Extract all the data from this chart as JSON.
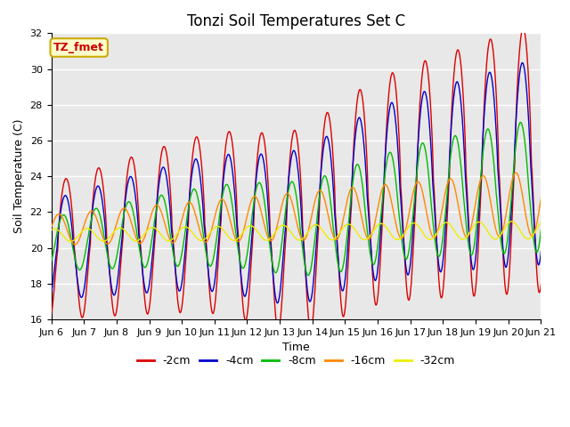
{
  "title": "Tonzi Soil Temperatures Set C",
  "xlabel": "Time",
  "ylabel": "Soil Temperature (C)",
  "ylim": [
    16,
    32
  ],
  "n_days": 15,
  "annotation": "TZ_fmet",
  "annotation_color": "#cc0000",
  "annotation_bg": "#ffffcc",
  "annotation_border": "#ccaa00",
  "series_colors": {
    "-2cm": "#dd0000",
    "-4cm": "#0000cc",
    "-8cm": "#00bb00",
    "-16cm": "#ff8800",
    "-32cm": "#eeee00"
  },
  "series_linewidth": 1.0,
  "bg_color": "#e8e8e8",
  "grid_color": "#ffffff",
  "tick_label_size": 8,
  "title_size": 12,
  "axis_label_size": 9,
  "legend_fontsize": 9
}
